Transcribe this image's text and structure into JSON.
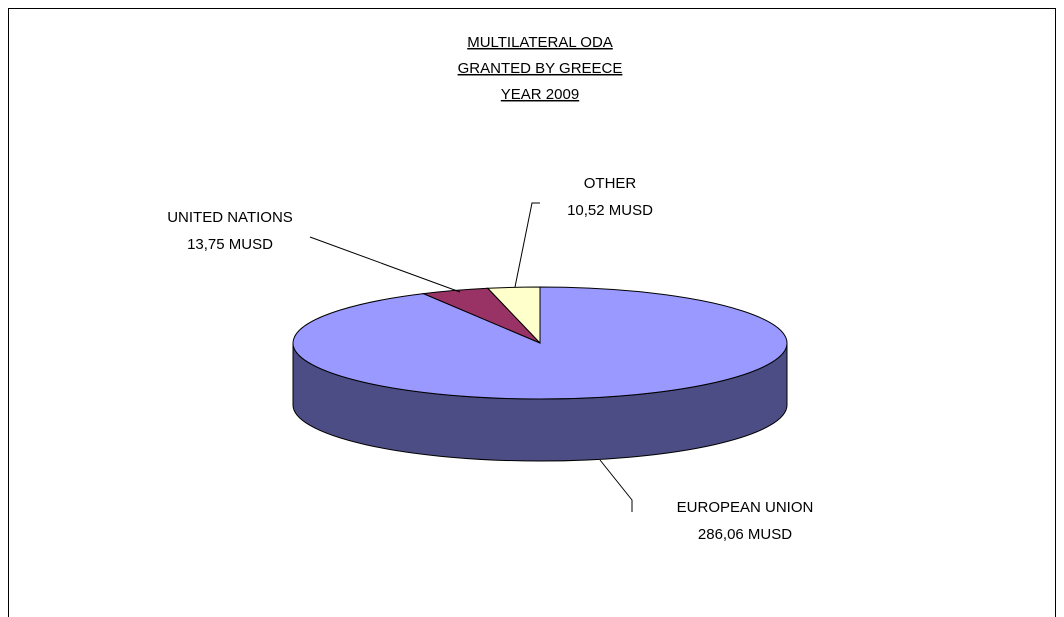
{
  "chart_data": {
    "type": "pie3d",
    "title": [
      "MULTILATERAL ODA",
      "GRANTED BY GREECE",
      "YEAR 2009"
    ],
    "categories": [
      "EUROPEAN UNION",
      "UNITED NATIONS",
      "OTHER"
    ],
    "values": [
      286.06,
      13.75,
      10.52
    ],
    "value_labels": [
      "286,06 MUSD",
      "13,75 MUSD",
      "10,52 MUSD"
    ],
    "colors": [
      "#9999ff",
      "#993366",
      "#ffffcc"
    ],
    "side_color": "#4d4d85"
  }
}
